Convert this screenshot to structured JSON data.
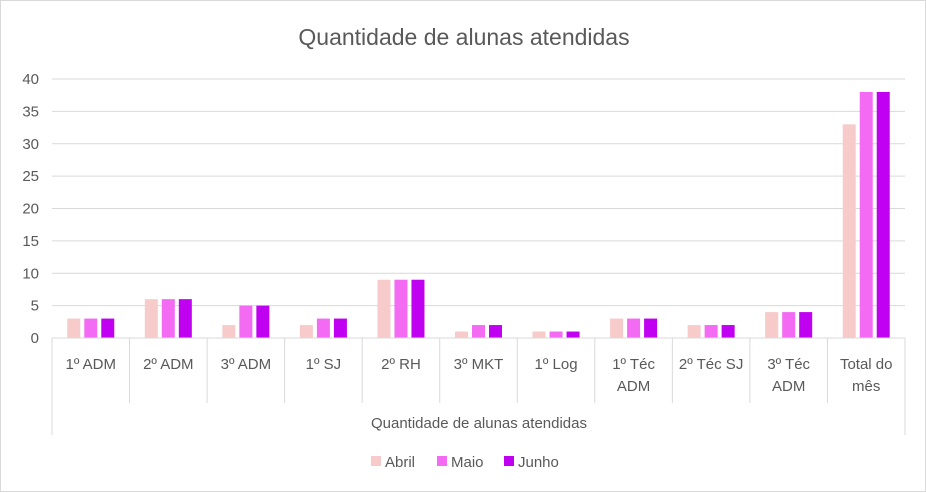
{
  "chart_data": {
    "type": "bar",
    "title": "Quantidade de alunas atendidas",
    "xlabel": "Quantidade de alunas atendidas",
    "ylabel": "",
    "ylim": [
      0,
      40
    ],
    "yticks": [
      0,
      5,
      10,
      15,
      20,
      25,
      30,
      35,
      40
    ],
    "grid": true,
    "legend_position": "bottom",
    "categories": [
      [
        "1º ADM"
      ],
      [
        "2º ADM"
      ],
      [
        "3º ADM"
      ],
      [
        "1º SJ"
      ],
      [
        "2º RH"
      ],
      [
        "3º MKT"
      ],
      [
        "1º Log"
      ],
      [
        "1º Téc",
        "ADM"
      ],
      [
        "2º Téc SJ"
      ],
      [
        "3º Téc",
        "ADM"
      ],
      [
        "Total do",
        "mês"
      ]
    ],
    "series": [
      {
        "name": "Abril",
        "color": "#F8CBCB",
        "values": [
          3,
          6,
          2,
          2,
          9,
          1,
          1,
          3,
          2,
          4,
          33
        ]
      },
      {
        "name": "Maio",
        "color": "#F26BF2",
        "values": [
          3,
          6,
          5,
          3,
          9,
          2,
          1,
          3,
          2,
          4,
          38
        ]
      },
      {
        "name": "Junho",
        "color": "#C000F0",
        "values": [
          3,
          6,
          5,
          3,
          9,
          2,
          1,
          3,
          2,
          4,
          38
        ]
      }
    ]
  }
}
